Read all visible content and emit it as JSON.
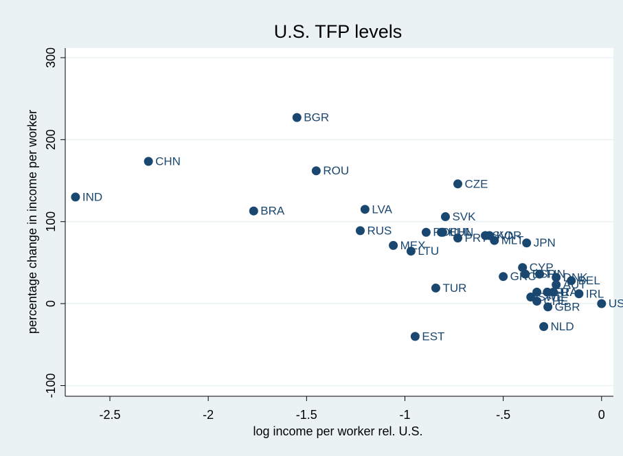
{
  "chart_data": {
    "type": "scatter",
    "title": "U.S. TFP levels",
    "x_label": "log income per worker rel. U.S.",
    "y_label": "percentage change in income per worker",
    "color": "#1a476f",
    "labels": [
      "IND",
      "CHN",
      "BGR",
      "ROU",
      "BRA",
      "LVA",
      "CZE",
      "SVK",
      "RUS",
      "POL",
      "HUN",
      "CHL",
      "PRT",
      "SVN",
      "KOR",
      "MLT",
      "JPN",
      "MEX",
      "LTU",
      "CYP",
      "GRC",
      "ESP",
      "FIN",
      "DNK",
      "BEL",
      "AUT",
      "ITA",
      "FRA",
      "DEU",
      "SWE",
      "CHE",
      "GBR",
      "IRL",
      "NLD",
      "USA",
      "TUR",
      "EST"
    ],
    "x": [
      -2.675,
      -2.304,
      -1.549,
      -1.451,
      -1.769,
      -1.203,
      -0.731,
      -0.794,
      -1.227,
      -0.892,
      -0.815,
      -0.808,
      -0.731,
      -0.591,
      -0.57,
      -0.545,
      -0.381,
      -1.059,
      -0.969,
      -0.402,
      -0.5,
      -0.388,
      -0.315,
      -0.231,
      -0.154,
      -0.231,
      -0.245,
      -0.276,
      -0.329,
      -0.36,
      -0.329,
      -0.273,
      -0.115,
      -0.294,
      0,
      -0.843,
      -0.948
    ],
    "values": [
      130,
      173.5,
      227,
      162,
      113,
      115,
      146,
      106,
      89,
      87,
      87,
      87,
      80,
      83,
      83,
      77,
      74,
      71,
      64,
      44,
      33,
      36,
      36,
      32,
      28,
      23,
      14,
      14,
      14,
      8,
      3,
      -4,
      12,
      -28,
      0,
      19,
      -40
    ],
    "xlim": [
      -2.727,
      0.06
    ],
    "ylim": [
      -113,
      311.7
    ],
    "xticks": [
      -2.5,
      -2,
      -1.5,
      -1,
      {
        "value": -0.5,
        "label": "-.5"
      },
      0
    ],
    "yticks": [
      300,
      200,
      100,
      0,
      -100
    ],
    "grid": true
  }
}
